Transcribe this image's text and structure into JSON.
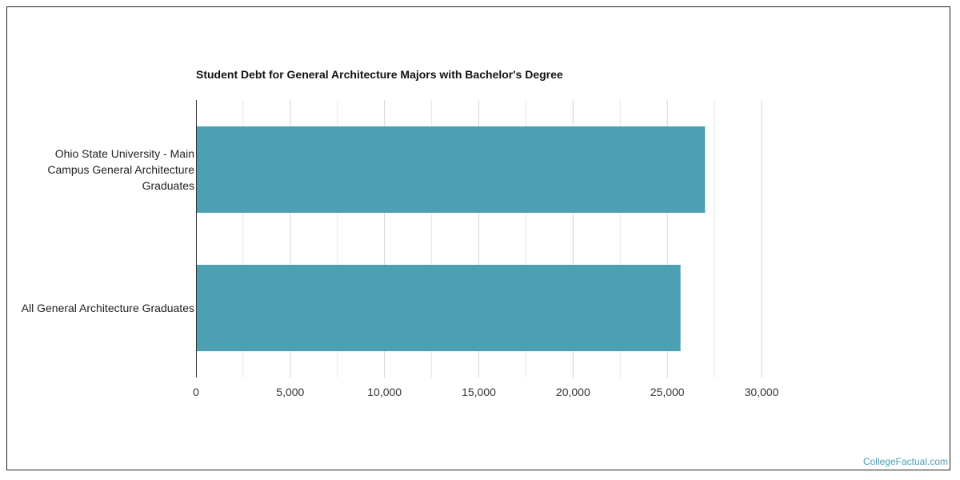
{
  "chart_data": {
    "type": "bar",
    "orientation": "horizontal",
    "title": "Student Debt for General Architecture Majors with Bachelor's Degree",
    "categories": [
      "Ohio State University - Main Campus General Architecture Graduates",
      "All General Architecture Graduates"
    ],
    "category_lines": [
      [
        "Ohio State University - Main",
        "Campus General Architecture",
        "Graduates"
      ],
      [
        "All General Architecture Graduates"
      ]
    ],
    "values": [
      27000,
      25700
    ],
    "xlim": [
      0,
      30000
    ],
    "xticks": [
      0,
      5000,
      10000,
      15000,
      20000,
      25000,
      30000
    ],
    "xtick_labels": [
      "0",
      "5,000",
      "10,000",
      "15,000",
      "20,000",
      "25,000",
      "30,000"
    ],
    "bar_color": "#4ba1b3",
    "grid": true,
    "legend": "none"
  },
  "watermark": "CollegeFactual.com"
}
